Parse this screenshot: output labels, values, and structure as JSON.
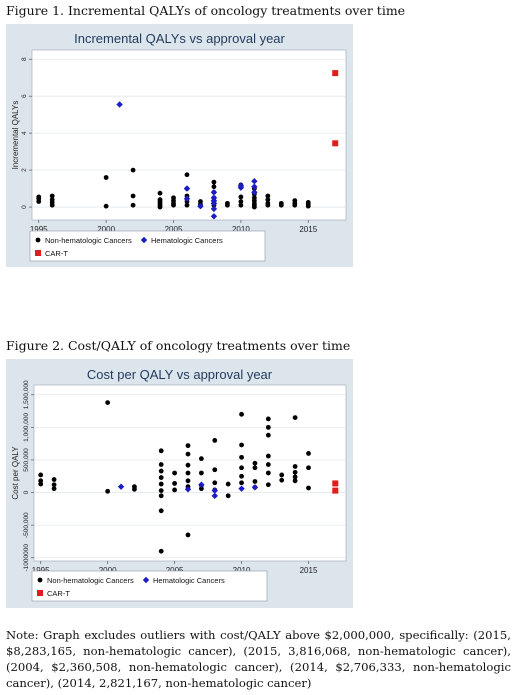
{
  "figure1_caption": "Figure 1. Incremental QALYs of oncology treatments over time",
  "figure2_caption": "Figure 2. Cost/QALY of oncology treatments over time",
  "note": "Note: Graph excludes outliers with cost/QALY above $2,000,000, specifically: (2015, $8,283,165, non-hematologic cancer), (2015, 3,816,068, non-hematologic cancer), (2004, $2,360,508, non-hematologic cancer), (2014, $2,706,333, non-hematologic cancer), (2014, 2,821,167, non-hematologic cancer)",
  "colors": {
    "panel_bg": "#dde5ec",
    "plot_bg": "#ffffff",
    "title": "#1f3a5c",
    "non_hem": "#000000",
    "hem": "#1c1cc8",
    "cart": "#e01c1c"
  },
  "chart_data": [
    {
      "type": "scatter",
      "title": "Incremental QALYs vs approval year",
      "xlabel": "Approval year",
      "ylabel": "Incremental QALYs",
      "xlim": [
        1994.5,
        2017.8
      ],
      "ylim": [
        -0.7,
        8.5
      ],
      "xticks": [
        1995,
        2000,
        2005,
        2010,
        2015
      ],
      "xtick_labels": [
        "1995",
        "2000",
        "2005",
        "2010",
        "2015"
      ],
      "yticks": [
        0,
        2,
        4,
        6,
        8
      ],
      "ytick_labels": [
        "0",
        "2",
        "4",
        "6",
        "8"
      ],
      "legend": [
        "Non-hematologic Cancers",
        "Hematologic Cancers",
        "CAR-T"
      ],
      "legend_position": "bottom",
      "series": [
        {
          "name": "Non-hematologic Cancers",
          "marker": "circle",
          "points": [
            [
              1995,
              0.55
            ],
            [
              1995,
              0.45
            ],
            [
              1995,
              0.3
            ],
            [
              1996,
              0.6
            ],
            [
              1996,
              0.4
            ],
            [
              1996,
              0.25
            ],
            [
              1996,
              0.1
            ],
            [
              2000,
              1.6
            ],
            [
              2000,
              0.05
            ],
            [
              2002,
              2.0
            ],
            [
              2002,
              0.6
            ],
            [
              2002,
              0.1
            ],
            [
              2004,
              0.75
            ],
            [
              2004,
              0.4
            ],
            [
              2004,
              0.3
            ],
            [
              2004,
              0.2
            ],
            [
              2004,
              0.1
            ],
            [
              2004,
              0.0
            ],
            [
              2005,
              0.5
            ],
            [
              2005,
              0.35
            ],
            [
              2005,
              0.2
            ],
            [
              2005,
              0.1
            ],
            [
              2006,
              1.75
            ],
            [
              2006,
              1.0
            ],
            [
              2006,
              0.6
            ],
            [
              2006,
              0.3
            ],
            [
              2006,
              0.1
            ],
            [
              2007,
              0.3
            ],
            [
              2007,
              0.15
            ],
            [
              2007,
              0.05
            ],
            [
              2008,
              1.35
            ],
            [
              2008,
              1.1
            ],
            [
              2008,
              0.8
            ],
            [
              2008,
              0.5
            ],
            [
              2008,
              0.3
            ],
            [
              2008,
              0.1
            ],
            [
              2009,
              0.2
            ],
            [
              2009,
              0.1
            ],
            [
              2010,
              1.2
            ],
            [
              2010,
              0.55
            ],
            [
              2010,
              0.3
            ],
            [
              2010,
              0.1
            ],
            [
              2011,
              1.0
            ],
            [
              2011,
              0.7
            ],
            [
              2011,
              0.5
            ],
            [
              2011,
              0.35
            ],
            [
              2011,
              0.2
            ],
            [
              2011,
              0.1
            ],
            [
              2011,
              0.0
            ],
            [
              2012,
              0.6
            ],
            [
              2012,
              0.4
            ],
            [
              2012,
              0.2
            ],
            [
              2012,
              0.1
            ],
            [
              2013,
              0.2
            ],
            [
              2013,
              0.1
            ],
            [
              2014,
              0.35
            ],
            [
              2014,
              0.2
            ],
            [
              2014,
              0.1
            ],
            [
              2015,
              0.25
            ],
            [
              2015,
              0.15
            ],
            [
              2015,
              0.05
            ]
          ]
        },
        {
          "name": "Hematologic Cancers",
          "marker": "diamond",
          "points": [
            [
              2001,
              5.55
            ],
            [
              2006,
              1.0
            ],
            [
              2006,
              0.45
            ],
            [
              2007,
              0.05
            ],
            [
              2008,
              0.8
            ],
            [
              2008,
              0.5
            ],
            [
              2008,
              0.35
            ],
            [
              2008,
              0.2
            ],
            [
              2008,
              -0.1
            ],
            [
              2008,
              -0.5
            ],
            [
              2010,
              1.15
            ],
            [
              2010,
              1.05
            ],
            [
              2011,
              1.4
            ],
            [
              2011,
              1.1
            ],
            [
              2011,
              0.8
            ]
          ]
        },
        {
          "name": "CAR-T",
          "marker": "square",
          "points": [
            [
              2017,
              7.25
            ],
            [
              2017,
              3.45
            ]
          ]
        }
      ]
    },
    {
      "type": "scatter",
      "title": "Cost per QALY vs approval year",
      "xlabel": "Approval year",
      "ylabel": "Cost per QALY",
      "xlim": [
        1994.5,
        2017.8
      ],
      "ylim": [
        -1050000,
        1650000
      ],
      "xticks": [
        1995,
        2000,
        2005,
        2010,
        2015
      ],
      "xtick_labels": [
        "1995",
        "2000",
        "2005",
        "2010",
        "2015"
      ],
      "yticks": [
        -1000000,
        -500000,
        0,
        500000,
        1000000,
        1500000
      ],
      "ytick_labels": [
        "-1000000",
        "-500,000",
        "0",
        "500,000",
        "1,000,000",
        "1,500,000"
      ],
      "legend": [
        "Non-hematologic Cancers",
        "Hematologic Cancers",
        "CAR-T"
      ],
      "legend_position": "bottom",
      "series": [
        {
          "name": "Non-hematologic Cancers",
          "marker": "circle",
          "points": [
            [
              1995,
              270000
            ],
            [
              1995,
              180000
            ],
            [
              1995,
              130000
            ],
            [
              1996,
              200000
            ],
            [
              1996,
              120000
            ],
            [
              1996,
              60000
            ],
            [
              2000,
              1380000
            ],
            [
              2000,
              20000
            ],
            [
              2002,
              90000
            ],
            [
              2002,
              50000
            ],
            [
              2004,
              640000
            ],
            [
              2004,
              430000
            ],
            [
              2004,
              330000
            ],
            [
              2004,
              230000
            ],
            [
              2004,
              130000
            ],
            [
              2004,
              30000
            ],
            [
              2004,
              -50000
            ],
            [
              2004,
              -280000
            ],
            [
              2004,
              -900000
            ],
            [
              2005,
              300000
            ],
            [
              2005,
              140000
            ],
            [
              2005,
              40000
            ],
            [
              2006,
              720000
            ],
            [
              2006,
              590000
            ],
            [
              2006,
              420000
            ],
            [
              2006,
              300000
            ],
            [
              2006,
              180000
            ],
            [
              2006,
              90000
            ],
            [
              2006,
              -650000
            ],
            [
              2007,
              520000
            ],
            [
              2007,
              300000
            ],
            [
              2007,
              110000
            ],
            [
              2007,
              60000
            ],
            [
              2008,
              800000
            ],
            [
              2008,
              350000
            ],
            [
              2008,
              150000
            ],
            [
              2008,
              40000
            ],
            [
              2009,
              130000
            ],
            [
              2009,
              -50000
            ],
            [
              2010,
              1200000
            ],
            [
              2010,
              730000
            ],
            [
              2010,
              540000
            ],
            [
              2010,
              380000
            ],
            [
              2010,
              250000
            ],
            [
              2010,
              150000
            ],
            [
              2011,
              450000
            ],
            [
              2011,
              380000
            ],
            [
              2011,
              170000
            ],
            [
              2011,
              80000
            ],
            [
              2012,
              1130000
            ],
            [
              2012,
              1000000
            ],
            [
              2012,
              880000
            ],
            [
              2012,
              560000
            ],
            [
              2012,
              430000
            ],
            [
              2012,
              300000
            ],
            [
              2012,
              120000
            ],
            [
              2013,
              270000
            ],
            [
              2013,
              190000
            ],
            [
              2014,
              1150000
            ],
            [
              2014,
              400000
            ],
            [
              2014,
              310000
            ],
            [
              2014,
              240000
            ],
            [
              2014,
              180000
            ],
            [
              2015,
              600000
            ],
            [
              2015,
              380000
            ],
            [
              2015,
              70000
            ]
          ]
        },
        {
          "name": "Hematologic Cancers",
          "marker": "diamond",
          "points": [
            [
              2001,
              90000
            ],
            [
              2006,
              50000
            ],
            [
              2007,
              120000
            ],
            [
              2008,
              30000
            ],
            [
              2008,
              -50000
            ],
            [
              2010,
              60000
            ],
            [
              2011,
              80000
            ]
          ]
        },
        {
          "name": "CAR-T",
          "marker": "square",
          "points": [
            [
              2017,
              140000
            ],
            [
              2017,
              30000
            ]
          ]
        }
      ]
    }
  ]
}
